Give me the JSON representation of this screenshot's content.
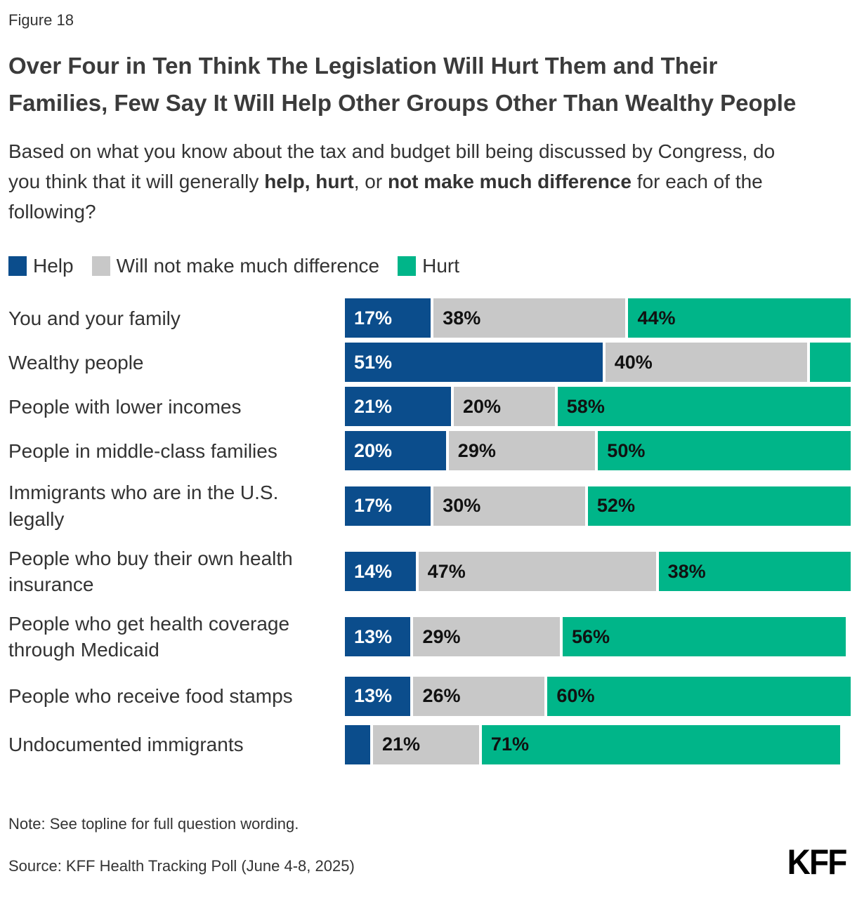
{
  "figure_label": "Figure 18",
  "title": "Over Four in Ten Think The Legislation Will Hurt Them and Their Families, Few Say It Will Help Other Groups Other Than Wealthy People",
  "subtitle": {
    "part1": "Based on what you know about the tax and budget bill being discussed by Congress, do you think that it will generally ",
    "part2": "help, hurt",
    "part3": ", or ",
    "part4": "not make much difference",
    "part5": " for each of the following?"
  },
  "colors": {
    "help": "#0B4D8C",
    "no_difference": "#C8C8C8",
    "hurt": "#00B589"
  },
  "legend": {
    "items": [
      {
        "label": "Help",
        "color_key": "help"
      },
      {
        "label": "Will not make much difference",
        "color_key": "no_difference"
      },
      {
        "label": "Hurt",
        "color_key": "hurt"
      }
    ]
  },
  "chart_data": {
    "type": "bar",
    "orientation": "horizontal-stacked",
    "unit": "percent",
    "xlim": [
      0,
      100
    ],
    "grid": false,
    "legend_position": "top",
    "categories": [
      "You and your family",
      "Wealthy people",
      "People with lower incomes",
      "People in middle-class families",
      "Immigrants who are in the U.S. legally",
      "People who buy their own health insurance",
      "People who get health coverage through Medicaid",
      "People who receive food stamps",
      "Undocumented immigrants"
    ],
    "tall_rows": [
      4,
      5,
      6,
      7
    ],
    "series": [
      {
        "name": "Help",
        "color_key": "help",
        "values": [
          17,
          51,
          21,
          20,
          17,
          14,
          13,
          13,
          5
        ],
        "labels": [
          "17%",
          "51%",
          "21%",
          "20%",
          "17%",
          "14%",
          "13%",
          "13%",
          ""
        ]
      },
      {
        "name": "Will not make much difference",
        "color_key": "no_difference",
        "values": [
          38,
          40,
          20,
          29,
          30,
          47,
          29,
          26,
          21
        ],
        "labels": [
          "38%",
          "40%",
          "20%",
          "29%",
          "30%",
          "47%",
          "29%",
          "26%",
          "21%"
        ]
      },
      {
        "name": "Hurt",
        "color_key": "hurt",
        "values": [
          44,
          8,
          58,
          50,
          52,
          38,
          56,
          60,
          71
        ],
        "labels": [
          "44%",
          "",
          "58%",
          "50%",
          "52%",
          "38%",
          "56%",
          "60%",
          "71%"
        ]
      }
    ]
  },
  "note": "Note: See topline for full question wording.",
  "source": "Source: KFF Health Tracking Poll (June 4-8, 2025)",
  "logo": "KFF"
}
